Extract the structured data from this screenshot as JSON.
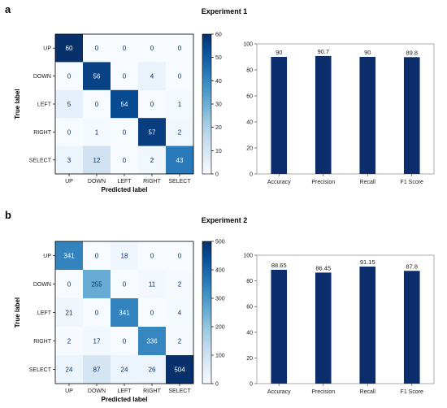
{
  "panels": [
    {
      "letter": "a",
      "title": "Experiment 1"
    },
    {
      "letter": "b",
      "title": "Experiment 2"
    }
  ],
  "chart_data": [
    {
      "type": "heatmap",
      "x_categories": [
        "UP",
        "DOWN",
        "LEFT",
        "RIGHT",
        "SELECT"
      ],
      "y_categories": [
        "UP",
        "DOWN",
        "LEFT",
        "RIGHT",
        "SELECT"
      ],
      "values": [
        [
          60,
          0,
          0,
          0,
          0
        ],
        [
          0,
          56,
          0,
          4,
          0
        ],
        [
          5,
          0,
          54,
          0,
          1
        ],
        [
          0,
          1,
          0,
          57,
          2
        ],
        [
          3,
          12,
          0,
          2,
          43
        ]
      ],
      "xlabel": "Predicted label",
      "ylabel": "True label",
      "colorbar": {
        "min": 0,
        "max": 60,
        "ticks": [
          0,
          10,
          20,
          30,
          40,
          50,
          60
        ]
      },
      "colormap": [
        "#f7fbff",
        "#deebf7",
        "#c6dbef",
        "#9ecae1",
        "#6baed6",
        "#4292c6",
        "#2171b5",
        "#08519c",
        "#08306b"
      ]
    },
    {
      "type": "bar",
      "categories": [
        "Accuracy",
        "Precision",
        "Recall",
        "F1 Score"
      ],
      "values": [
        90,
        90.7,
        90,
        89.8
      ],
      "value_labels": [
        "90",
        "90.7",
        "90",
        "89.8"
      ],
      "ylim": [
        0,
        100
      ],
      "yticks": [
        0,
        20,
        40,
        60,
        80,
        100
      ],
      "color": "#0c2d6b"
    },
    {
      "type": "heatmap",
      "x_categories": [
        "UP",
        "DOWN",
        "LEFT",
        "RIGHT",
        "SELECT"
      ],
      "y_categories": [
        "UP",
        "DOWN",
        "LEFT",
        "RIGHT",
        "SELECT"
      ],
      "values": [
        [
          341,
          0,
          18,
          0,
          0
        ],
        [
          0,
          255,
          0,
          11,
          2
        ],
        [
          21,
          0,
          341,
          0,
          4
        ],
        [
          2,
          17,
          0,
          336,
          2
        ],
        [
          24,
          87,
          24,
          26,
          504
        ]
      ],
      "xlabel": "Predicted label",
      "ylabel": "True label",
      "colorbar": {
        "min": 0,
        "max": 500,
        "ticks": [
          0,
          100,
          200,
          300,
          400,
          500
        ]
      },
      "colormap": [
        "#f7fbff",
        "#deebf7",
        "#c6dbef",
        "#9ecae1",
        "#6baed6",
        "#4292c6",
        "#2171b5",
        "#08519c",
        "#08306b"
      ]
    },
    {
      "type": "bar",
      "categories": [
        "Accuracy",
        "Precision",
        "Recall",
        "F1 Score"
      ],
      "values": [
        88.65,
        86.45,
        91.15,
        87.8
      ],
      "value_labels": [
        "88.65",
        "86.45",
        "91.15",
        "87.8"
      ],
      "ylim": [
        0,
        100
      ],
      "yticks": [
        0,
        20,
        40,
        60,
        80,
        100
      ],
      "color": "#0c2d6b"
    }
  ]
}
